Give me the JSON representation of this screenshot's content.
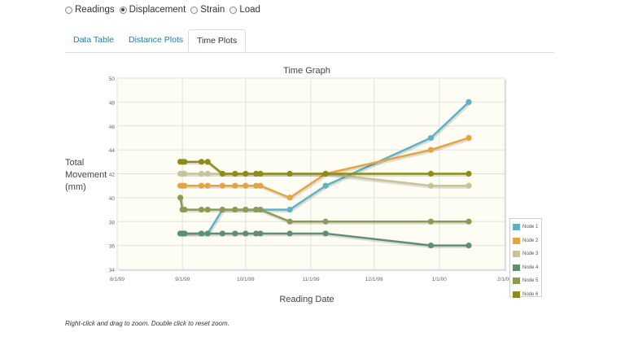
{
  "radios": [
    {
      "label": "Readings",
      "checked": false
    },
    {
      "label": "Displacement",
      "checked": true
    },
    {
      "label": "Strain",
      "checked": false
    },
    {
      "label": "Load",
      "checked": false
    }
  ],
  "tabs": [
    {
      "label": "Data Table",
      "active": false
    },
    {
      "label": "Distance Plots",
      "active": false
    },
    {
      "label": "Time Plots",
      "active": true
    }
  ],
  "footnote": "Right-click and drag to zoom. Double click to reset zoom.",
  "chart_data": {
    "type": "line",
    "title": "Time Graph",
    "xlabel": "Reading Date",
    "ylabel_lines": [
      "Total",
      "Movement",
      "(mm)"
    ],
    "x_ticks": [
      "8/1/99",
      "9/1/99",
      "10/1/99",
      "11/1/99",
      "12/1/99",
      "1/1/00",
      "2/1/00"
    ],
    "ylim": [
      34,
      50
    ],
    "y_ticks": [
      "34",
      "36",
      "38",
      "40",
      "42",
      "44",
      "46",
      "48",
      "50"
    ],
    "x": [
      "1999-08-31",
      "1999-09-01",
      "1999-09-02",
      "1999-09-10",
      "1999-09-13",
      "1999-09-20",
      "1999-09-26",
      "1999-10-01",
      "1999-10-06",
      "1999-10-08",
      "1999-10-22",
      "1999-11-08",
      "1999-12-28",
      "2000-01-15"
    ],
    "legend_position": "bottom-right",
    "series": [
      {
        "name": "Node 1",
        "color": "#5db3c6",
        "values": [
          37,
          37,
          37,
          37,
          37,
          39,
          39,
          39,
          39,
          39,
          39,
          41,
          45,
          48
        ]
      },
      {
        "name": "Node 2",
        "color": "#e3a446",
        "values": [
          41,
          41,
          41,
          41,
          41,
          41,
          41,
          41,
          41,
          41,
          40,
          42,
          44,
          45
        ]
      },
      {
        "name": "Node 3",
        "color": "#c8c39a",
        "values": [
          42,
          42,
          42,
          42,
          42,
          42,
          42,
          42,
          42,
          42,
          42,
          42,
          41,
          41
        ]
      },
      {
        "name": "Node 4",
        "color": "#5f8f73",
        "values": [
          37,
          37,
          37,
          37,
          37,
          37,
          37,
          37,
          37,
          37,
          37,
          37,
          36,
          36
        ]
      },
      {
        "name": "Node 5",
        "color": "#8c9a54",
        "values": [
          40,
          39,
          39,
          39,
          39,
          39,
          39,
          39,
          39,
          39,
          38,
          38,
          38,
          38
        ]
      },
      {
        "name": "Node 6",
        "color": "#8f8a1c",
        "values": [
          43,
          43,
          43,
          43,
          43,
          42,
          42,
          42,
          42,
          42,
          42,
          42,
          42,
          42
        ]
      }
    ]
  }
}
